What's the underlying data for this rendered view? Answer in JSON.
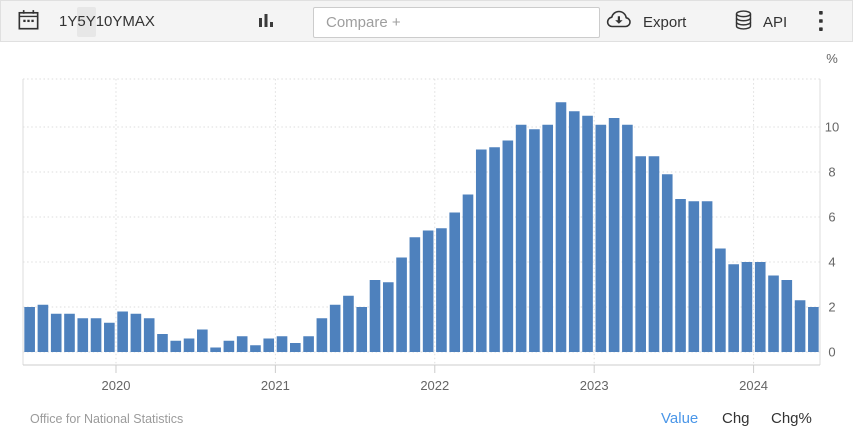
{
  "toolbar": {
    "range_buttons": [
      {
        "label": "1Y",
        "active": false
      },
      {
        "label": "5Y",
        "active": true
      },
      {
        "label": "10Y",
        "active": false
      },
      {
        "label": "MAX",
        "active": false
      }
    ],
    "compare_placeholder": "Compare +",
    "export_label": "Export",
    "api_label": "API"
  },
  "chart_data": {
    "type": "bar",
    "title": "",
    "ylabel": "%",
    "unit_label": "%",
    "ylim": [
      -0.6,
      12.1
    ],
    "yticks": [
      0,
      2,
      4,
      6,
      8,
      10
    ],
    "grid": "dotted",
    "legend": "none",
    "bar_color": "#4e81bd",
    "categories": [
      "2019-06",
      "2019-07",
      "2019-08",
      "2019-09",
      "2019-10",
      "2019-11",
      "2019-12",
      "2020-01",
      "2020-02",
      "2020-03",
      "2020-04",
      "2020-05",
      "2020-06",
      "2020-07",
      "2020-08",
      "2020-09",
      "2020-10",
      "2020-11",
      "2020-12",
      "2021-01",
      "2021-02",
      "2021-03",
      "2021-04",
      "2021-05",
      "2021-06",
      "2021-07",
      "2021-08",
      "2021-09",
      "2021-10",
      "2021-11",
      "2021-12",
      "2022-01",
      "2022-02",
      "2022-03",
      "2022-04",
      "2022-05",
      "2022-06",
      "2022-07",
      "2022-08",
      "2022-09",
      "2022-10",
      "2022-11",
      "2022-12",
      "2023-01",
      "2023-02",
      "2023-03",
      "2023-04",
      "2023-05",
      "2023-06",
      "2023-07",
      "2023-08",
      "2023-09",
      "2023-10",
      "2023-11",
      "2023-12",
      "2024-01",
      "2024-02",
      "2024-03",
      "2024-04",
      "2024-05"
    ],
    "values": [
      2.0,
      2.1,
      1.7,
      1.7,
      1.5,
      1.5,
      1.3,
      1.8,
      1.7,
      1.5,
      0.8,
      0.5,
      0.6,
      1.0,
      0.2,
      0.5,
      0.7,
      0.3,
      0.6,
      0.7,
      0.4,
      0.7,
      1.5,
      2.1,
      2.5,
      2.0,
      3.2,
      3.1,
      4.2,
      5.1,
      5.4,
      5.5,
      6.2,
      7.0,
      9.0,
      9.1,
      9.4,
      10.1,
      9.9,
      10.1,
      11.1,
      10.7,
      10.5,
      10.1,
      10.4,
      10.1,
      8.7,
      8.7,
      7.9,
      6.8,
      6.7,
      6.7,
      4.6,
      3.9,
      4.0,
      4.0,
      3.4,
      3.2,
      2.3,
      2.0
    ],
    "xtick_year_labels": [
      "2020",
      "2021",
      "2022",
      "2023",
      "2024"
    ]
  },
  "footer": {
    "source": "Office for National Statistics",
    "links": [
      {
        "label": "Value",
        "active": true
      },
      {
        "label": "Chg",
        "active": false
      },
      {
        "label": "Chg%",
        "active": false
      }
    ]
  },
  "colors": {
    "bar": "#4e81bd",
    "axis_text": "#666666",
    "grid": "#dedede",
    "plot_border": "#dddddd",
    "baseline": "#cccccc",
    "toolbar_bg": "#f4f4f4",
    "active_range_bg": "#e7e7e7",
    "value_link": "#4a96e8",
    "source_text": "#9b9b9b",
    "icon": "#333333"
  }
}
